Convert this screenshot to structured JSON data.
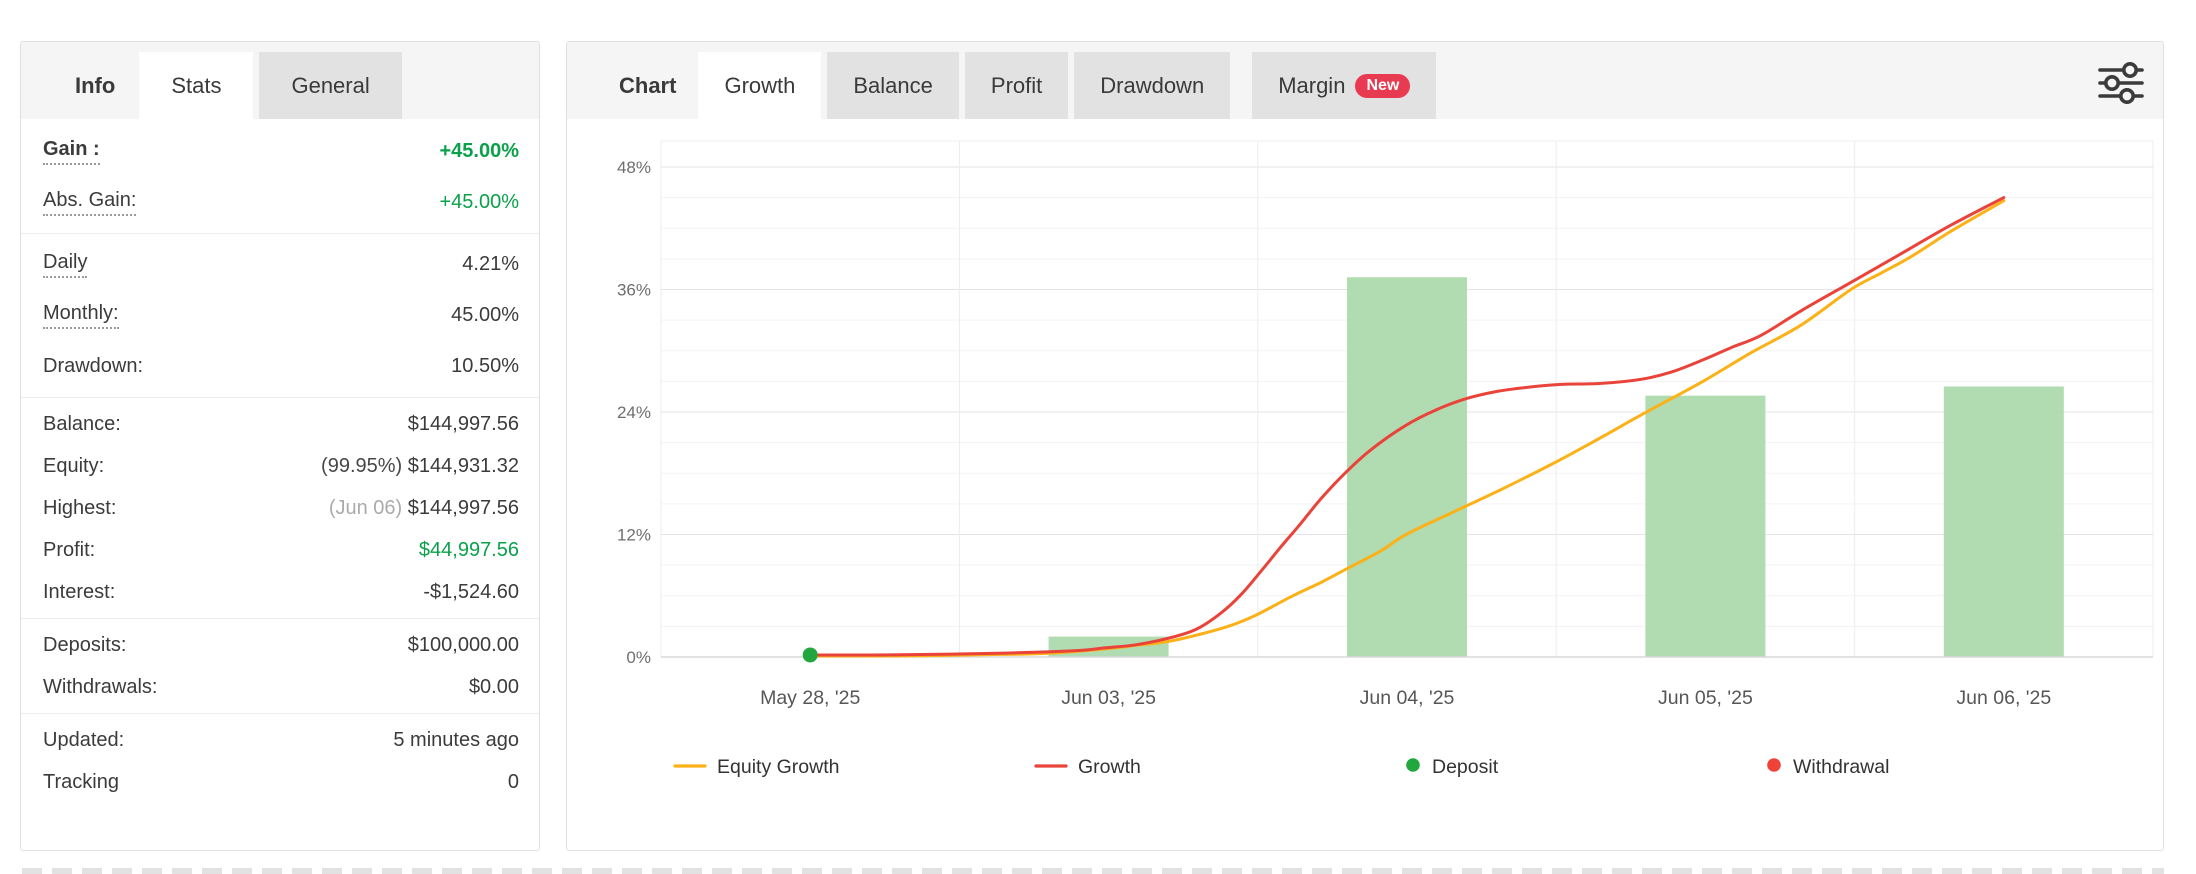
{
  "left_panel": {
    "tabs": [
      {
        "label": "Info",
        "style": "lbl-tab"
      },
      {
        "label": "Stats",
        "style": "active"
      },
      {
        "label": "General",
        "style": "inactive"
      }
    ],
    "sections": [
      {
        "row_size": "tall",
        "rows": [
          {
            "label": "Gain :",
            "label_bold": true,
            "underline": true,
            "value": "+45.00%",
            "value_class": "green b"
          },
          {
            "label": "Abs. Gain:",
            "underline": true,
            "value": "+45.00%",
            "value_class": "green"
          }
        ]
      },
      {
        "row_size": "tall",
        "rows": [
          {
            "label": "Daily",
            "underline": true,
            "value": "4.21%"
          },
          {
            "label": "Monthly:",
            "underline": true,
            "value": "45.00%"
          },
          {
            "label": "Drawdown:",
            "value": "10.50%"
          }
        ]
      },
      {
        "row_size": "short",
        "rows": [
          {
            "label": "Balance:",
            "value": "$144,997.56"
          },
          {
            "label": "Equity:",
            "prefix": "(99.95%) ",
            "prefix_class": "dark-prefix",
            "value": "$144,931.32"
          },
          {
            "label": "Highest:",
            "prefix": "(Jun 06) ",
            "prefix_class": "muted",
            "value": "$144,997.56"
          },
          {
            "label": "Profit:",
            "value": "$44,997.56",
            "value_class": "green"
          },
          {
            "label": "Interest:",
            "value": "-$1,524.60"
          }
        ]
      },
      {
        "row_size": "short",
        "rows": [
          {
            "label": "Deposits:",
            "value": "$100,000.00"
          },
          {
            "label": "Withdrawals:",
            "value": "$0.00"
          }
        ]
      },
      {
        "row_size": "short",
        "rows": [
          {
            "label": "Updated:",
            "value": "5 minutes ago"
          },
          {
            "label": "Tracking",
            "value": "0"
          }
        ]
      }
    ]
  },
  "right_panel": {
    "tabs": [
      {
        "label": "Chart",
        "style": "lbl-tab"
      },
      {
        "label": "Growth",
        "style": "active"
      },
      {
        "label": "Balance",
        "style": "inactive"
      },
      {
        "label": "Profit",
        "style": "inactive"
      },
      {
        "label": "Drawdown",
        "style": "inactive"
      },
      {
        "label": "Margin",
        "style": "inactive gap-left",
        "badge": "New"
      }
    ],
    "settings_icon": "sliders-filter-icon"
  },
  "chart_data": {
    "type": "mixed-bar-line",
    "title": "Growth",
    "categories": [
      "May 28, '25",
      "Jun 03, '25",
      "Jun 04, '25",
      "Jun 05, '25",
      "Jun 06, '25"
    ],
    "y_ticks": [
      {
        "label": "0%",
        "value": 0
      },
      {
        "label": "12%",
        "value": 12
      },
      {
        "label": "24%",
        "value": 24
      },
      {
        "label": "36%",
        "value": 36
      },
      {
        "label": "48%",
        "value": 48
      }
    ],
    "ylim": [
      0,
      48
    ],
    "grid": {
      "minor_step_pct": 3,
      "major_step_pct": 12
    },
    "bars": {
      "name": "daily-gain-bars",
      "color": "#a9d7a9",
      "values_pct": [
        0,
        2.0,
        37.2,
        25.6,
        26.5
      ]
    },
    "series": [
      {
        "name": "Equity Growth",
        "color": "#fbb117",
        "end_value_pct": 44.7,
        "samples": [
          [
            0.0999,
            0.1
          ],
          [
            0.1474,
            0.1
          ],
          [
            0.1876,
            0.15
          ],
          [
            0.2278,
            0.25
          ],
          [
            0.2587,
            0.35
          ],
          [
            0.2982,
            0.8
          ],
          [
            0.3217,
            1.2
          ],
          [
            0.3391,
            1.5
          ],
          [
            0.3619,
            2.25
          ],
          [
            0.382,
            3.1
          ],
          [
            0.3988,
            4.1
          ],
          [
            0.4222,
            5.9
          ],
          [
            0.4423,
            7.3
          ],
          [
            0.4591,
            8.6
          ],
          [
            0.4826,
            10.4
          ],
          [
            0.4993,
            12.0
          ],
          [
            0.5295,
            14.1
          ],
          [
            0.563,
            16.4
          ],
          [
            0.5985,
            19.0
          ],
          [
            0.63,
            21.5
          ],
          [
            0.6568,
            23.7
          ],
          [
            0.6983,
            27.0
          ],
          [
            0.7305,
            29.8
          ],
          [
            0.764,
            32.5
          ],
          [
            0.7975,
            36.0
          ],
          [
            0.8176,
            37.6
          ],
          [
            0.8377,
            39.2
          ],
          [
            0.8645,
            41.7
          ],
          [
            0.9,
            44.7
          ]
        ]
      },
      {
        "name": "Growth",
        "color": "#e9433a",
        "end_value_pct": 45.0,
        "samples": [
          [
            0.0999,
            0.2
          ],
          [
            0.1407,
            0.2
          ],
          [
            0.1809,
            0.25
          ],
          [
            0.2212,
            0.35
          ],
          [
            0.2587,
            0.5
          ],
          [
            0.2815,
            0.65
          ],
          [
            0.2982,
            0.9
          ],
          [
            0.3183,
            1.2
          ],
          [
            0.3391,
            1.8
          ],
          [
            0.3586,
            2.7
          ],
          [
            0.3753,
            4.3
          ],
          [
            0.3887,
            6.1
          ],
          [
            0.4021,
            8.4
          ],
          [
            0.4155,
            10.8
          ],
          [
            0.4289,
            13.1
          ],
          [
            0.4423,
            15.5
          ],
          [
            0.4591,
            18.1
          ],
          [
            0.4758,
            20.3
          ],
          [
            0.4993,
            22.7
          ],
          [
            0.5194,
            24.2
          ],
          [
            0.5395,
            25.3
          ],
          [
            0.5596,
            26.0
          ],
          [
            0.5797,
            26.4
          ],
          [
            0.6032,
            26.7
          ],
          [
            0.63,
            26.8
          ],
          [
            0.6568,
            27.2
          ],
          [
            0.6769,
            27.9
          ],
          [
            0.6983,
            29.1
          ],
          [
            0.7171,
            30.3
          ],
          [
            0.7372,
            31.5
          ],
          [
            0.764,
            33.9
          ],
          [
            0.7975,
            36.7
          ],
          [
            0.831,
            39.5
          ],
          [
            0.8645,
            42.3
          ],
          [
            0.9,
            45.0
          ]
        ]
      }
    ],
    "markers": [
      {
        "name": "Deposit",
        "color": "#21a73d",
        "category_index": 0,
        "value_pct": 0.2
      }
    ],
    "legend": [
      {
        "label": "Equity Growth",
        "swatch": "line",
        "color": "#fbb117"
      },
      {
        "label": "Growth",
        "swatch": "line",
        "color": "#e9433a"
      },
      {
        "label": "Deposit",
        "swatch": "dot",
        "color": "#21a73d"
      },
      {
        "label": "Withdrawal",
        "swatch": "dot",
        "color": "#ef4339"
      }
    ],
    "legend_position": "bottom"
  }
}
